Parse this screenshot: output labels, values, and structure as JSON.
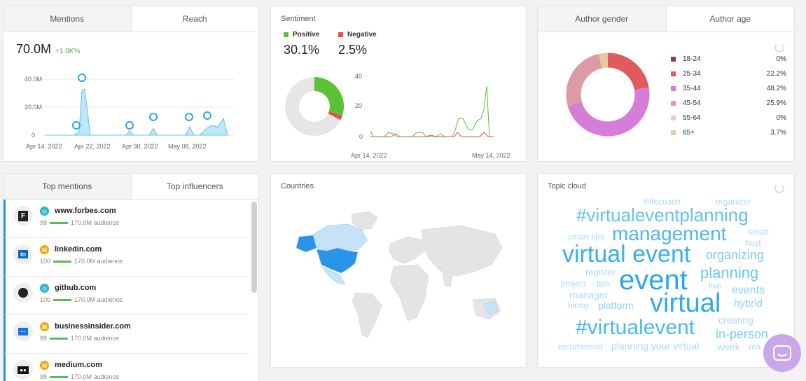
{
  "mentions_card": {
    "tabs": [
      "Mentions",
      "Reach"
    ],
    "value": "70.0M",
    "delta": "+1.0K%",
    "y_ticks": [
      "40.0M",
      "20.0M",
      "0"
    ],
    "x_ticks": [
      "Apr 14, 2022",
      "Apr 22, 2022",
      "Apr 30, 2022",
      "May 08, 2022"
    ]
  },
  "sentiment_card": {
    "title": "Sentiment",
    "positive_label": "Positive",
    "positive_value": "30.1%",
    "negative_label": "Negative",
    "negative_value": "2.5%",
    "y_ticks": [
      "40",
      "20",
      "0"
    ],
    "x_ticks": [
      "Apr 14, 2022",
      "May 14, 2022"
    ],
    "colors": {
      "positive": "#5bc236",
      "negative": "#e05252",
      "neutral": "#e6e6e6"
    }
  },
  "author_card": {
    "tabs": [
      "Author gender",
      "Author age"
    ],
    "legend": [
      {
        "label": "18-24",
        "value": "0%",
        "color": "#8c3f4f"
      },
      {
        "label": "25-34",
        "value": "22.2%",
        "color": "#e05a5f"
      },
      {
        "label": "35-44",
        "value": "48.2%",
        "color": "#d57ed8"
      },
      {
        "label": "45-54",
        "value": "25.9%",
        "color": "#dc9aa5"
      },
      {
        "label": "55-64",
        "value": "0%",
        "color": "#f1c4cd"
      },
      {
        "label": "65+",
        "value": "3.7%",
        "color": "#e8c8a0"
      }
    ]
  },
  "top_card": {
    "tabs": [
      "Top mentions",
      "Top influencers"
    ],
    "audience_suffix": "170.0M audience",
    "rows": [
      {
        "domain": "www.forbes.com",
        "score": "99",
        "logo": "F",
        "source": "web-icon"
      },
      {
        "domain": "linkedin.com",
        "score": "100",
        "logo": "in",
        "source": "news-icon"
      },
      {
        "domain": "github.com",
        "score": "100",
        "logo": "gh",
        "source": "web-icon"
      },
      {
        "domain": "businessinsider.com",
        "score": "99",
        "logo": "···",
        "source": "news-icon"
      },
      {
        "domain": "medium.com",
        "score": "99",
        "logo": "●●",
        "source": "news-icon"
      }
    ]
  },
  "countries_card": {
    "title": "Countries"
  },
  "topic_card": {
    "title": "Topic cloud",
    "words": [
      {
        "text": "#lifecoach",
        "size": 12,
        "color": "#a8d8f5"
      },
      {
        "text": "organizer",
        "size": 12,
        "color": "#a8d8f5"
      },
      {
        "text": "#virtualeventplanning",
        "size": 26,
        "color": "#62c3ef"
      },
      {
        "text": "smart tips",
        "size": 12,
        "color": "#a8d8f5"
      },
      {
        "text": "management",
        "size": 28,
        "color": "#4fb8ec"
      },
      {
        "text": "smart",
        "size": 12,
        "color": "#a8d8f5"
      },
      {
        "text": "host",
        "size": 12,
        "color": "#a8d8f5"
      },
      {
        "text": "virtual event",
        "size": 34,
        "color": "#3aaeea"
      },
      {
        "text": "organizing",
        "size": 18,
        "color": "#7fcbf1"
      },
      {
        "text": "register",
        "size": 13,
        "color": "#a8d8f5"
      },
      {
        "text": "planning",
        "size": 22,
        "color": "#6cc6f0"
      },
      {
        "text": "project",
        "size": 12,
        "color": "#a8d8f5"
      },
      {
        "text": "tips",
        "size": 12,
        "color": "#a8d8f5"
      },
      {
        "text": "event",
        "size": 40,
        "color": "#2ba6e8"
      },
      {
        "text": "live",
        "size": 12,
        "color": "#a8d8f5"
      },
      {
        "text": "manager",
        "size": 14,
        "color": "#a8d8f5"
      },
      {
        "text": "events",
        "size": 16,
        "color": "#8fd0f3"
      },
      {
        "text": "hiring",
        "size": 12,
        "color": "#a8d8f5"
      },
      {
        "text": "platform",
        "size": 14,
        "color": "#8fd0f3"
      },
      {
        "text": "virtual",
        "size": 38,
        "color": "#31aae9"
      },
      {
        "text": "hybrid",
        "size": 15,
        "color": "#8fd0f3"
      },
      {
        "text": "creating",
        "size": 14,
        "color": "#a8d8f5"
      },
      {
        "text": "#virtualevent",
        "size": 30,
        "color": "#4fb8ec"
      },
      {
        "text": "in-person",
        "size": 18,
        "color": "#7fcbf1"
      },
      {
        "text": "recommend",
        "size": 12,
        "color": "#a8d8f5"
      },
      {
        "text": "planning your virtual",
        "size": 14,
        "color": "#a8d8f5"
      },
      {
        "text": "week",
        "size": 14,
        "color": "#a8d8f5"
      },
      {
        "text": "rea",
        "size": 12,
        "color": "#a8d8f5"
      }
    ]
  }
}
